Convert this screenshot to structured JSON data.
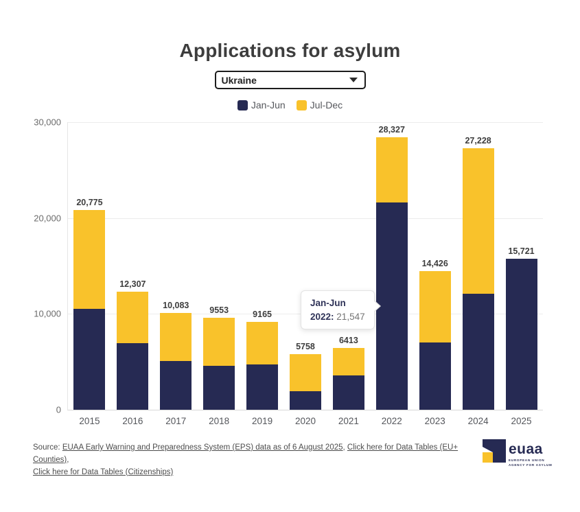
{
  "title": "Applications for asylum",
  "dropdown": {
    "value": "Ukraine"
  },
  "legend": [
    {
      "label": "Jan-Jun",
      "color": "#262a53"
    },
    {
      "label": "Jul-Dec",
      "color": "#f9c22b"
    }
  ],
  "chart_data": {
    "type": "bar",
    "stacked": true,
    "title": "Applications for asylum",
    "categories": [
      "2015",
      "2016",
      "2017",
      "2018",
      "2019",
      "2020",
      "2021",
      "2022",
      "2023",
      "2024",
      "2025"
    ],
    "series": [
      {
        "name": "Jan-Jun",
        "color": "#262a53",
        "values": [
          10500,
          6900,
          5100,
          4600,
          4700,
          1900,
          3600,
          21547,
          7000,
          12100,
          15721
        ]
      },
      {
        "name": "Jul-Dec",
        "color": "#f9c22b",
        "values": [
          10275,
          5407,
          4983,
          4953,
          4465,
          3858,
          2813,
          6780,
          7426,
          15128,
          0
        ]
      }
    ],
    "totals": [
      20775,
      12307,
      10083,
      9553,
      9165,
      5758,
      6413,
      28327,
      14426,
      27228,
      15721
    ],
    "total_labels": [
      "20,775",
      "12,307",
      "10,083",
      "9553",
      "9165",
      "5758",
      "6413",
      "28,327",
      "14,426",
      "27,228",
      "15,721"
    ],
    "ylim": [
      0,
      30000
    ],
    "ytick_values": [
      30000,
      20000,
      10000,
      0
    ],
    "ytick_labels": [
      "30,000",
      "20,000",
      "10,000",
      "0"
    ],
    "grid": true,
    "legend_position": "top"
  },
  "tooltip": {
    "series_label": "Jan-Jun",
    "row_label": "2022:",
    "value": "21,547"
  },
  "source": {
    "prefix": "Source: ",
    "link_eps": "EUAA Early Warning and Preparedness System (EPS) data as of 6 August 2025",
    "sep1": ", ",
    "link_countries": "Click here for Data Tables (EU+ Counties)",
    "sep2": ",",
    "link_citizenships": "Click here for Data Tables (Citizenships)"
  },
  "logo": {
    "word": "euaa",
    "tagline_line1": "EUROPEAN UNION",
    "tagline_line2": "AGENCY FOR ASYLUM",
    "navy": "#262a53",
    "yellow": "#f9c22b"
  }
}
